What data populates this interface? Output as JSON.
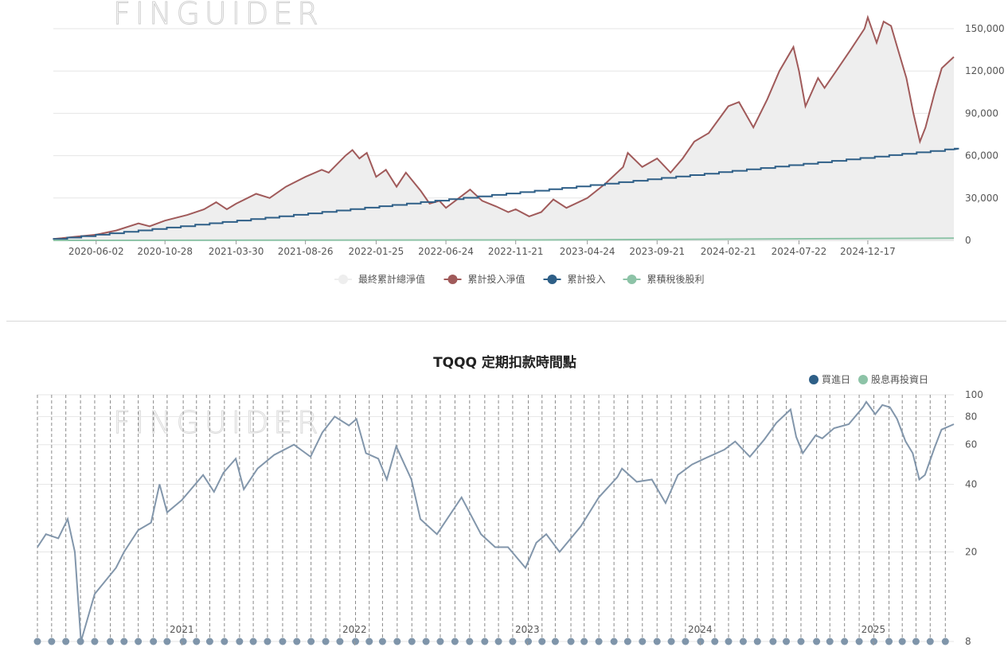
{
  "watermark": "FINGUIDER",
  "chart_data": [
    {
      "type": "area",
      "title": "",
      "xlabel": "",
      "ylabel": "",
      "x_tick_labels": [
        "2020-06-02",
        "2020-10-28",
        "2021-03-30",
        "2021-08-26",
        "2022-01-25",
        "2022-06-24",
        "2022-11-21",
        "2023-04-24",
        "2023-09-21",
        "2024-02-21",
        "2024-07-22",
        "2024-12-17"
      ],
      "y_tick_labels": [
        "0",
        "30,000",
        "60,000",
        "90,000",
        "120,000",
        "150,000"
      ],
      "ylim": [
        0,
        150000
      ],
      "x_range": [
        "2020-03-02",
        "2025-06-20"
      ],
      "grid": true,
      "legend_position": "bottom",
      "series": [
        {
          "name": "最終累計總淨值",
          "color": "#eeeeee",
          "legend_marker": "#eeeeee"
        },
        {
          "name": "累計投入淨值",
          "color": "#a05a5a",
          "points": [
            [
              "2020-03-02",
              1000
            ],
            [
              "2020-03-20",
              1500
            ],
            [
              "2020-04-15",
              2500
            ],
            [
              "2020-06-02",
              4000
            ],
            [
              "2020-07-15",
              7000
            ],
            [
              "2020-09-01",
              12000
            ],
            [
              "2020-09-25",
              10000
            ],
            [
              "2020-10-28",
              14000
            ],
            [
              "2020-12-15",
              18000
            ],
            [
              "2021-01-20",
              22000
            ],
            [
              "2021-02-15",
              27000
            ],
            [
              "2021-03-10",
              22000
            ],
            [
              "2021-03-30",
              26000
            ],
            [
              "2021-05-12",
              33000
            ],
            [
              "2021-06-10",
              30000
            ],
            [
              "2021-07-15",
              38000
            ],
            [
              "2021-08-26",
              45000
            ],
            [
              "2021-09-30",
              50000
            ],
            [
              "2021-10-15",
              48000
            ],
            [
              "2021-11-20",
              60000
            ],
            [
              "2021-12-05",
              64000
            ],
            [
              "2021-12-20",
              58000
            ],
            [
              "2022-01-05",
              62000
            ],
            [
              "2022-01-25",
              45000
            ],
            [
              "2022-02-15",
              50000
            ],
            [
              "2022-03-10",
              38000
            ],
            [
              "2022-03-30",
              48000
            ],
            [
              "2022-05-01",
              35000
            ],
            [
              "2022-05-20",
              26000
            ],
            [
              "2022-06-10",
              28000
            ],
            [
              "2022-06-24",
              23000
            ],
            [
              "2022-08-15",
              36000
            ],
            [
              "2022-09-10",
              28000
            ],
            [
              "2022-10-10",
              24000
            ],
            [
              "2022-11-05",
              20000
            ],
            [
              "2022-11-21",
              22000
            ],
            [
              "2022-12-20",
              17000
            ],
            [
              "2023-01-15",
              20000
            ],
            [
              "2023-02-10",
              29000
            ],
            [
              "2023-03-10",
              23000
            ],
            [
              "2023-04-24",
              30000
            ],
            [
              "2023-06-01",
              40000
            ],
            [
              "2023-07-10",
              52000
            ],
            [
              "2023-07-20",
              62000
            ],
            [
              "2023-08-20",
              52000
            ],
            [
              "2023-09-21",
              58000
            ],
            [
              "2023-10-20",
              48000
            ],
            [
              "2023-11-15",
              58000
            ],
            [
              "2023-12-10",
              70000
            ],
            [
              "2024-01-10",
              76000
            ],
            [
              "2024-02-21",
              95000
            ],
            [
              "2024-03-15",
              98000
            ],
            [
              "2024-04-15",
              80000
            ],
            [
              "2024-05-15",
              100000
            ],
            [
              "2024-06-10",
              120000
            ],
            [
              "2024-07-10",
              137000
            ],
            [
              "2024-07-22",
              120000
            ],
            [
              "2024-08-05",
              95000
            ],
            [
              "2024-09-01",
              115000
            ],
            [
              "2024-09-15",
              108000
            ],
            [
              "2024-10-10",
              120000
            ],
            [
              "2024-11-10",
              135000
            ],
            [
              "2024-12-10",
              150000
            ],
            [
              "2024-12-17",
              158000
            ],
            [
              "2025-01-05",
              140000
            ],
            [
              "2025-01-20",
              155000
            ],
            [
              "2025-02-05",
              152000
            ],
            [
              "2025-02-20",
              135000
            ],
            [
              "2025-03-10",
              115000
            ],
            [
              "2025-03-25",
              90000
            ],
            [
              "2025-04-08",
              70000
            ],
            [
              "2025-04-20",
              80000
            ],
            [
              "2025-05-10",
              105000
            ],
            [
              "2025-05-25",
              122000
            ],
            [
              "2025-06-20",
              130000
            ]
          ]
        },
        {
          "name": "累計投入",
          "color": "#2e5f87",
          "points": [
            [
              "2020-03-02",
              1000
            ],
            [
              "2025-06-20",
              65000
            ]
          ]
        },
        {
          "name": "累積稅後股利",
          "color": "#8dc3a7",
          "points": [
            [
              "2020-03-02",
              0
            ],
            [
              "2023-01-01",
              300
            ],
            [
              "2025-06-20",
              1500
            ]
          ]
        }
      ]
    },
    {
      "type": "line",
      "title": "TQQQ 定期扣款時間點",
      "xlabel": "",
      "ylabel": "",
      "x_tick_labels": [
        "2021",
        "2022",
        "2023",
        "2024",
        "2025"
      ],
      "y_tick_labels": [
        "8",
        "20",
        "40",
        "60",
        "80",
        "100"
      ],
      "ylim": [
        8,
        100
      ],
      "y_scale": "log",
      "x_range": [
        "2020-03-02",
        "2025-06-20"
      ],
      "grid": true,
      "legend_position": "top-right",
      "series": [
        {
          "name": "價格",
          "color": "#8296ab",
          "points": [
            [
              "2020-03-02",
              21
            ],
            [
              "2020-03-20",
              24
            ],
            [
              "2020-04-15",
              23
            ],
            [
              "2020-05-05",
              28
            ],
            [
              "2020-05-20",
              20
            ],
            [
              "2020-06-02",
              8
            ],
            [
              "2020-07-01",
              13
            ],
            [
              "2020-08-15",
              17
            ],
            [
              "2020-09-01",
              20
            ],
            [
              "2020-10-01",
              25
            ],
            [
              "2020-10-28",
              27
            ],
            [
              "2020-11-15",
              40
            ],
            [
              "2020-12-01",
              30
            ],
            [
              "2021-01-01",
              34
            ],
            [
              "2021-02-15",
              44
            ],
            [
              "2021-03-10",
              37
            ],
            [
              "2021-03-30",
              45
            ],
            [
              "2021-04-25",
              52
            ],
            [
              "2021-05-12",
              38
            ],
            [
              "2021-06-10",
              47
            ],
            [
              "2021-07-15",
              54
            ],
            [
              "2021-08-26",
              60
            ],
            [
              "2021-09-30",
              53
            ],
            [
              "2021-10-25",
              68
            ],
            [
              "2021-11-20",
              80
            ],
            [
              "2021-12-20",
              73
            ],
            [
              "2022-01-05",
              78
            ],
            [
              "2022-01-25",
              55
            ],
            [
              "2022-02-20",
              52
            ],
            [
              "2022-03-10",
              42
            ],
            [
              "2022-03-30",
              59
            ],
            [
              "2022-05-01",
              42
            ],
            [
              "2022-05-20",
              28
            ],
            [
              "2022-06-24",
              24
            ],
            [
              "2022-08-15",
              35
            ],
            [
              "2022-09-25",
              24
            ],
            [
              "2022-10-25",
              21
            ],
            [
              "2022-11-21",
              21
            ],
            [
              "2022-12-28",
              17
            ],
            [
              "2023-01-20",
              22
            ],
            [
              "2023-02-10",
              24
            ],
            [
              "2023-03-10",
              20
            ],
            [
              "2023-04-24",
              26
            ],
            [
              "2023-06-01",
              35
            ],
            [
              "2023-07-10",
              43
            ],
            [
              "2023-07-20",
              47
            ],
            [
              "2023-08-20",
              41
            ],
            [
              "2023-09-21",
              42
            ],
            [
              "2023-10-20",
              33
            ],
            [
              "2023-11-15",
              44
            ],
            [
              "2023-12-15",
              49
            ],
            [
              "2024-01-10",
              52
            ],
            [
              "2024-02-21",
              57
            ],
            [
              "2024-03-15",
              62
            ],
            [
              "2024-04-15",
              53
            ],
            [
              "2024-05-15",
              63
            ],
            [
              "2024-06-10",
              75
            ],
            [
              "2024-07-10",
              86
            ],
            [
              "2024-07-22",
              65
            ],
            [
              "2024-08-05",
              55
            ],
            [
              "2024-09-01",
              66
            ],
            [
              "2024-09-15",
              64
            ],
            [
              "2024-10-10",
              71
            ],
            [
              "2024-11-10",
              74
            ],
            [
              "2024-12-10",
              88
            ],
            [
              "2024-12-17",
              93
            ],
            [
              "2025-01-05",
              82
            ],
            [
              "2025-01-20",
              90
            ],
            [
              "2025-02-05",
              88
            ],
            [
              "2025-02-20",
              78
            ],
            [
              "2025-03-10",
              62
            ],
            [
              "2025-03-25",
              55
            ],
            [
              "2025-04-08",
              42
            ],
            [
              "2025-04-20",
              44
            ],
            [
              "2025-05-10",
              58
            ],
            [
              "2025-05-25",
              70
            ],
            [
              "2025-06-20",
              74
            ]
          ]
        },
        {
          "name": "買進日",
          "color": "#2e5f87",
          "legend_marker": "#2e5f87",
          "dates": [
            "2020-03-02",
            "2020-04-01",
            "2020-05-01",
            "2020-06-01",
            "2020-07-01",
            "2020-08-03",
            "2020-09-01",
            "2020-10-01",
            "2020-11-02",
            "2020-12-01",
            "2021-01-04",
            "2021-02-01",
            "2021-03-01",
            "2021-04-01",
            "2021-05-03",
            "2021-06-01",
            "2021-07-01",
            "2021-08-02",
            "2021-09-01",
            "2021-10-01",
            "2021-11-01",
            "2021-12-01",
            "2022-01-03",
            "2022-02-01",
            "2022-03-01",
            "2022-04-01",
            "2022-05-02",
            "2022-06-01",
            "2022-07-01",
            "2022-08-01",
            "2022-09-01",
            "2022-10-03",
            "2022-11-01",
            "2022-12-01",
            "2023-01-03",
            "2023-02-01",
            "2023-03-01",
            "2023-04-03",
            "2023-05-01",
            "2023-06-01",
            "2023-07-03",
            "2023-08-01",
            "2023-09-01",
            "2023-10-02",
            "2023-11-01",
            "2023-12-01",
            "2024-01-02",
            "2024-02-01",
            "2024-03-01",
            "2024-04-01",
            "2024-05-01",
            "2024-06-03",
            "2024-07-01",
            "2024-08-01",
            "2024-09-03",
            "2024-10-01",
            "2024-11-01",
            "2024-12-02",
            "2025-01-02",
            "2025-02-03",
            "2025-03-03",
            "2025-04-01",
            "2025-05-01",
            "2025-06-02"
          ]
        },
        {
          "name": "股息再投資日",
          "color": "#8dc3a7",
          "legend_marker": "#8dc3a7"
        }
      ]
    }
  ]
}
